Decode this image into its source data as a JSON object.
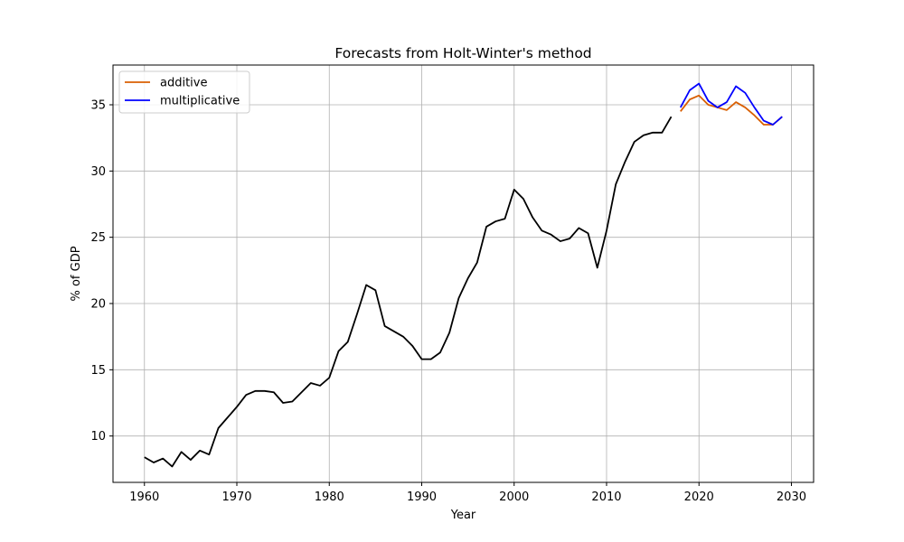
{
  "chart_data": {
    "type": "line",
    "title": "Forecasts from Holt-Winter's method",
    "xlabel": "Year",
    "ylabel": "% of GDP",
    "xlim": [
      1956.6,
      2032.4
    ],
    "ylim": [
      6.5,
      38.0
    ],
    "xticks": [
      1960,
      1970,
      1980,
      1990,
      2000,
      2010,
      2020,
      2030
    ],
    "yticks": [
      10,
      15,
      20,
      25,
      30,
      35
    ],
    "grid": true,
    "legend_position": "top-left",
    "series": [
      {
        "name": "",
        "color": "#000000",
        "x": [
          1960,
          1961,
          1962,
          1963,
          1964,
          1965,
          1966,
          1967,
          1968,
          1969,
          1970,
          1971,
          1972,
          1973,
          1974,
          1975,
          1976,
          1977,
          1978,
          1979,
          1980,
          1981,
          1982,
          1983,
          1984,
          1985,
          1986,
          1987,
          1988,
          1989,
          1990,
          1991,
          1992,
          1993,
          1994,
          1995,
          1996,
          1997,
          1998,
          1999,
          2000,
          2001,
          2002,
          2003,
          2004,
          2005,
          2006,
          2007,
          2008,
          2009,
          2010,
          2011,
          2012,
          2013,
          2014,
          2015,
          2016,
          2017
        ],
        "y": [
          8.4,
          8.0,
          8.3,
          7.7,
          8.8,
          8.2,
          8.9,
          8.6,
          10.6,
          11.4,
          12.2,
          13.1,
          13.4,
          13.4,
          13.3,
          12.5,
          12.6,
          13.3,
          14.0,
          13.8,
          14.4,
          16.4,
          17.1,
          19.2,
          21.4,
          21.0,
          18.3,
          17.9,
          17.5,
          16.8,
          15.8,
          15.8,
          16.3,
          17.8,
          20.4,
          21.9,
          23.1,
          25.8,
          26.2,
          26.4,
          28.6,
          27.9,
          26.5,
          25.5,
          25.2,
          24.7,
          24.9,
          25.7,
          25.3,
          22.7,
          25.5,
          29.0,
          30.7,
          32.2,
          32.7,
          32.9,
          32.9,
          34.1
        ]
      },
      {
        "name": "additive",
        "color": "#d95f02",
        "x": [
          2018,
          2019,
          2020,
          2021,
          2022,
          2023,
          2024,
          2025,
          2026,
          2027,
          2028,
          2029
        ],
        "y": [
          34.5,
          35.4,
          35.7,
          35.0,
          34.8,
          34.6,
          35.2,
          34.8,
          34.2,
          33.5,
          33.5,
          34.1
        ]
      },
      {
        "name": "multiplicative",
        "color": "#0000ff",
        "x": [
          2018,
          2019,
          2020,
          2021,
          2022,
          2023,
          2024,
          2025,
          2026,
          2027,
          2028,
          2029
        ],
        "y": [
          34.8,
          36.1,
          36.6,
          35.3,
          34.8,
          35.2,
          36.4,
          35.9,
          34.8,
          33.8,
          33.5,
          34.1
        ]
      }
    ]
  }
}
